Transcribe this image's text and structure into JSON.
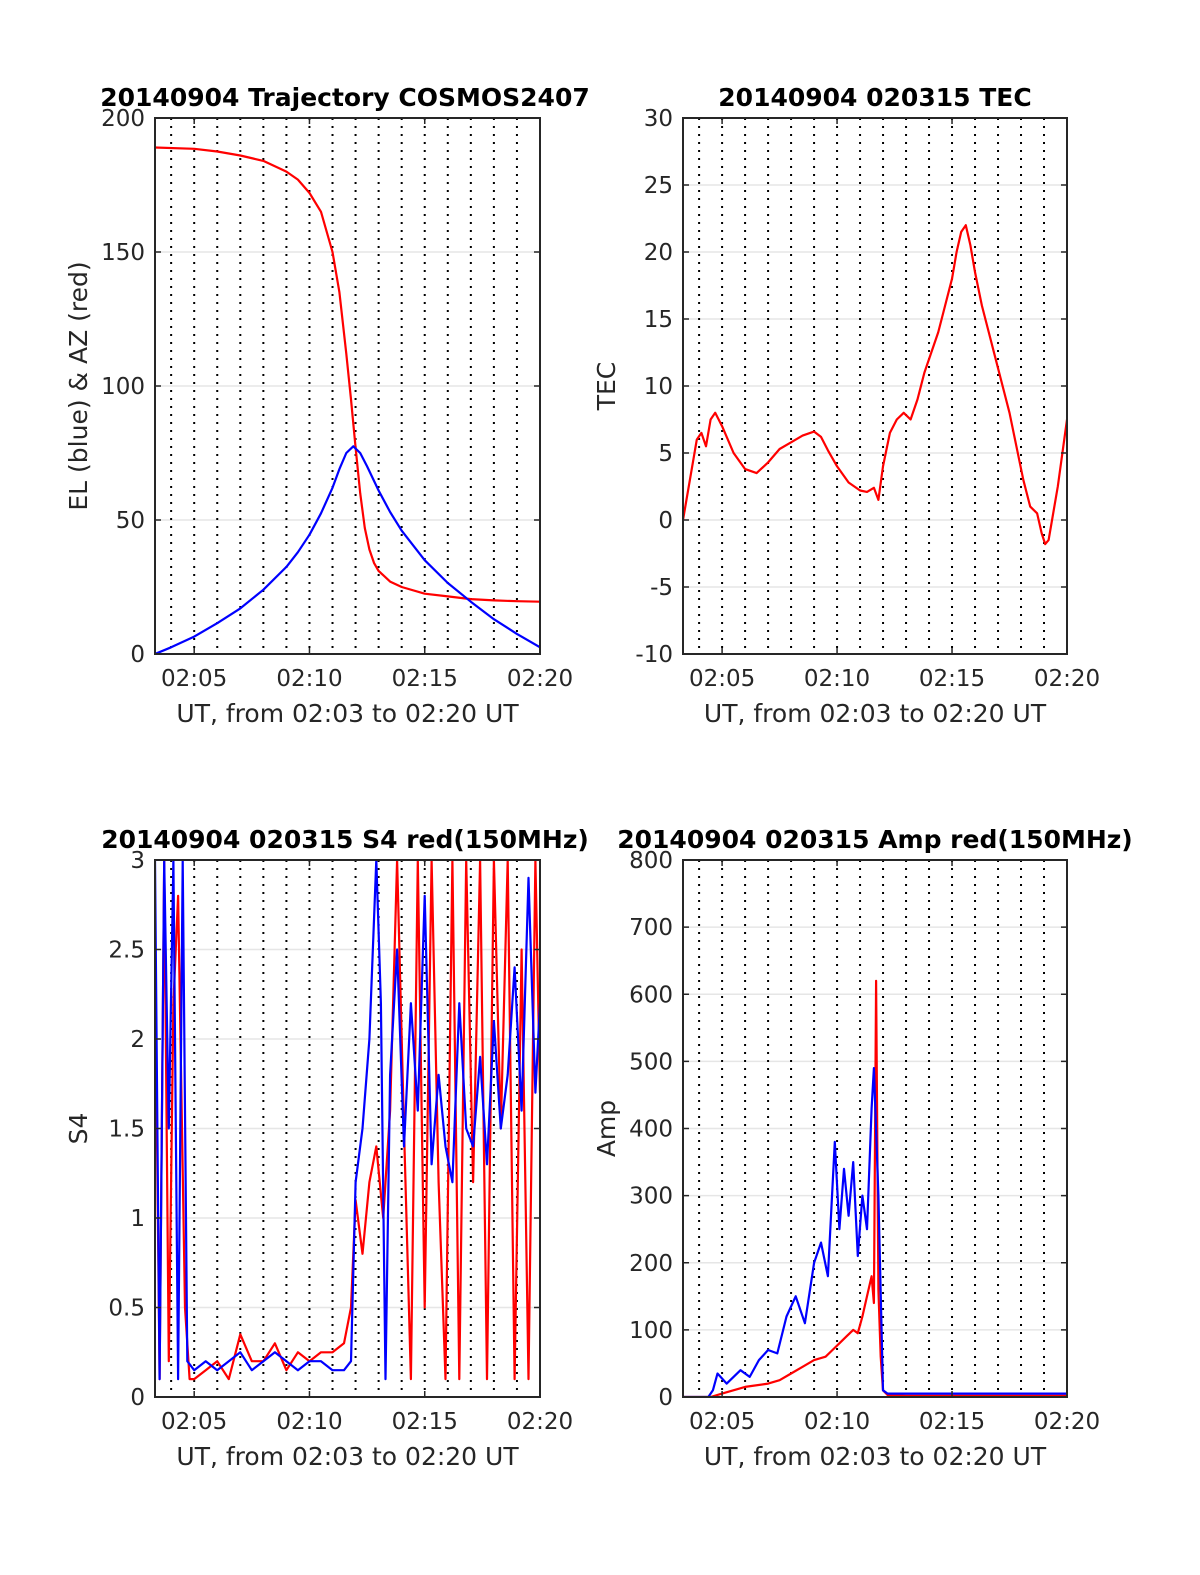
{
  "chart_data": [
    {
      "type": "line",
      "title": "20140904 Trajectory COSMOS2407",
      "xlabel": "UT, from 02:03 to 02:20 UT",
      "ylabel": "EL (blue) & AZ (red)",
      "xlim": [
        3.3,
        20.0
      ],
      "ylim": [
        0,
        200
      ],
      "xticks": [
        5,
        10,
        15,
        20
      ],
      "xtick_labels": [
        "02:05",
        "02:10",
        "02:15",
        "02:20"
      ],
      "yticks": [
        0,
        50,
        100,
        150,
        200
      ],
      "ytick_labels": [
        "0",
        "50",
        "100",
        "150",
        "200"
      ],
      "grid": true,
      "series": [
        {
          "color": "#ff0000",
          "x": [
            3.3,
            5,
            6,
            7,
            8,
            9,
            9.5,
            10,
            10.5,
            11,
            11.3,
            11.6,
            11.8,
            12.0,
            12.2,
            12.4,
            12.6,
            12.8,
            13.0,
            13.5,
            14,
            15,
            16,
            17,
            18,
            19,
            20
          ],
          "y": [
            189,
            188.5,
            187.5,
            186,
            184,
            180,
            177,
            172,
            165,
            150,
            135,
            112,
            95,
            77,
            60,
            47,
            39,
            34,
            31,
            27,
            25,
            22.5,
            21.5,
            20.5,
            20,
            19.7,
            19.5
          ]
        },
        {
          "color": "#0000ff",
          "x": [
            3.3,
            4,
            5,
            6,
            7,
            8,
            9,
            9.5,
            10,
            10.5,
            11,
            11.3,
            11.6,
            11.9,
            12.2,
            12.5,
            13,
            13.5,
            14,
            15,
            16,
            17,
            18,
            19,
            20
          ],
          "y": [
            0,
            2.5,
            6.5,
            11.5,
            17,
            24,
            32.5,
            38,
            44.5,
            52.5,
            62,
            69,
            75,
            77.5,
            75,
            70,
            61,
            53,
            46,
            35,
            26.5,
            19.5,
            13,
            7.5,
            2.5
          ]
        }
      ]
    },
    {
      "type": "line",
      "title": "20140904 020315 TEC",
      "xlabel": "UT, from 02:03 to 02:20 UT",
      "ylabel": "TEC",
      "xlim": [
        3.3,
        20.0
      ],
      "ylim": [
        -10,
        30
      ],
      "xticks": [
        5,
        10,
        15,
        20
      ],
      "xtick_labels": [
        "02:05",
        "02:10",
        "02:15",
        "02:20"
      ],
      "yticks": [
        -10,
        -5,
        0,
        5,
        10,
        15,
        20,
        25,
        30
      ],
      "ytick_labels": [
        "-10",
        "-5",
        "0",
        "5",
        "10",
        "15",
        "20",
        "25",
        "30"
      ],
      "grid": true,
      "series": [
        {
          "color": "#ff0000",
          "x": [
            3.3,
            3.5,
            3.7,
            3.9,
            4.1,
            4.3,
            4.5,
            4.7,
            5.0,
            5.5,
            6.0,
            6.5,
            7.0,
            7.5,
            8.0,
            8.5,
            9.0,
            9.3,
            9.6,
            10.0,
            10.5,
            11.0,
            11.3,
            11.6,
            11.8,
            12.0,
            12.3,
            12.6,
            12.9,
            13.2,
            13.5,
            13.8,
            14.1,
            14.4,
            14.7,
            15.0,
            15.2,
            15.4,
            15.6,
            15.8,
            16.0,
            16.3,
            16.6,
            16.9,
            17.2,
            17.5,
            17.8,
            18.1,
            18.4,
            18.7,
            18.9,
            19.05,
            19.2,
            19.4,
            19.6,
            19.8,
            20.0
          ],
          "y": [
            0,
            2,
            4,
            6,
            6.5,
            5.5,
            7.5,
            8,
            7,
            5,
            3.8,
            3.5,
            4.3,
            5.3,
            5.8,
            6.3,
            6.6,
            6.2,
            5.2,
            4,
            2.8,
            2.2,
            2.1,
            2.4,
            1.5,
            4,
            6.5,
            7.5,
            8,
            7.5,
            9,
            11,
            12.5,
            14,
            16,
            18,
            20,
            21.5,
            22,
            20.5,
            18.5,
            16,
            14,
            12,
            10,
            8,
            5.5,
            3,
            1,
            0.5,
            -1,
            -1.8,
            -1.5,
            0.5,
            2.5,
            5,
            7.5
          ]
        }
      ]
    },
    {
      "type": "line",
      "title": "20140904 020315 S4 red(150MHz)",
      "xlabel": "UT, from 02:03 to 02:20 UT",
      "ylabel": "S4",
      "xlim": [
        3.3,
        20.0
      ],
      "ylim": [
        0,
        3
      ],
      "xticks": [
        5,
        10,
        15,
        20
      ],
      "xtick_labels": [
        "02:05",
        "02:10",
        "02:15",
        "02:20"
      ],
      "yticks": [
        0,
        0.5,
        1,
        1.5,
        2,
        2.5,
        3
      ],
      "ytick_labels": [
        "0",
        "0.5",
        "1",
        "1.5",
        "2",
        "2.5",
        "3"
      ],
      "grid": true,
      "series": [
        {
          "color": "#ff0000",
          "x": [
            3.3,
            3.5,
            3.7,
            3.9,
            4.1,
            4.3,
            4.6,
            4.8,
            5.0,
            5.5,
            6.0,
            6.5,
            7.0,
            7.5,
            8.0,
            8.5,
            9.0,
            9.5,
            10.0,
            10.5,
            11.0,
            11.5,
            11.8,
            12.0,
            12.3,
            12.6,
            12.9,
            13.2,
            13.5,
            13.8,
            14.1,
            14.4,
            14.7,
            15.0,
            15.3,
            15.6,
            15.9,
            16.2,
            16.5,
            16.8,
            17.1,
            17.4,
            17.7,
            18.0,
            18.3,
            18.6,
            18.9,
            19.2,
            19.5,
            19.8,
            20.0
          ],
          "y": [
            2.5,
            0.1,
            3,
            0.2,
            2.2,
            2.8,
            0.5,
            0.1,
            0.1,
            0.15,
            0.2,
            0.1,
            0.35,
            0.2,
            0.2,
            0.3,
            0.15,
            0.25,
            0.2,
            0.25,
            0.25,
            0.3,
            0.5,
            1.1,
            0.8,
            1.2,
            1.4,
            1.0,
            1.6,
            3,
            1.5,
            0.1,
            3,
            0.5,
            3,
            1.2,
            0.1,
            3,
            0.1,
            3,
            1.2,
            3,
            0.1,
            3,
            1.5,
            3,
            0.1,
            2.5,
            0.1,
            3,
            1.7
          ]
        },
        {
          "color": "#0000ff",
          "x": [
            3.3,
            3.5,
            3.7,
            3.9,
            4.1,
            4.3,
            4.5,
            4.7,
            5.0,
            5.5,
            6.0,
            6.5,
            7.0,
            7.5,
            8.0,
            8.5,
            9.0,
            9.5,
            10.0,
            10.5,
            11.0,
            11.5,
            11.8,
            12.0,
            12.3,
            12.6,
            12.9,
            13.1,
            13.3,
            13.5,
            13.8,
            14.1,
            14.4,
            14.7,
            15.0,
            15.3,
            15.6,
            15.9,
            16.2,
            16.5,
            16.8,
            17.1,
            17.4,
            17.7,
            18.0,
            18.3,
            18.6,
            18.9,
            19.2,
            19.5,
            19.8,
            20.0
          ],
          "y": [
            3,
            0.1,
            3,
            1.5,
            3,
            0.1,
            3,
            0.2,
            0.15,
            0.2,
            0.15,
            0.2,
            0.25,
            0.15,
            0.2,
            0.25,
            0.2,
            0.15,
            0.2,
            0.2,
            0.15,
            0.15,
            0.2,
            1.2,
            1.5,
            2.0,
            3,
            2.2,
            0.1,
            1.8,
            2.5,
            1.4,
            2.2,
            1.6,
            2.8,
            1.3,
            1.8,
            1.4,
            1.2,
            2.2,
            1.5,
            1.4,
            1.9,
            1.3,
            2.1,
            1.5,
            1.8,
            2.4,
            1.6,
            2.9,
            1.7,
            2.2
          ]
        }
      ]
    },
    {
      "type": "line",
      "title": "20140904 020315 Amp red(150MHz)",
      "xlabel": "UT, from 02:03 to 02:20 UT",
      "ylabel": "Amp",
      "xlim": [
        3.3,
        20.0
      ],
      "ylim": [
        0,
        800
      ],
      "xticks": [
        5,
        10,
        15,
        20
      ],
      "xtick_labels": [
        "02:05",
        "02:10",
        "02:15",
        "02:20"
      ],
      "yticks": [
        0,
        100,
        200,
        300,
        400,
        500,
        600,
        700,
        800
      ],
      "ytick_labels": [
        "0",
        "100",
        "200",
        "300",
        "400",
        "500",
        "600",
        "700",
        "800"
      ],
      "grid": true,
      "series": [
        {
          "color": "#ff0000",
          "x": [
            3.3,
            4.5,
            5.0,
            6.0,
            7.0,
            7.5,
            8.0,
            8.5,
            9.0,
            9.5,
            9.8,
            10.1,
            10.4,
            10.7,
            10.9,
            11.1,
            11.3,
            11.5,
            11.6,
            11.7,
            11.8,
            11.9,
            12.0,
            12.2,
            13,
            15,
            17,
            20
          ],
          "y": [
            0,
            0,
            5,
            15,
            20,
            25,
            35,
            45,
            55,
            60,
            70,
            80,
            90,
            100,
            95,
            120,
            150,
            180,
            140,
            620,
            160,
            60,
            10,
            3,
            2,
            2,
            2,
            2
          ]
        },
        {
          "color": "#0000ff",
          "x": [
            3.3,
            4.4,
            4.6,
            4.8,
            5.2,
            5.8,
            6.2,
            6.6,
            7.0,
            7.4,
            7.8,
            8.2,
            8.6,
            9.0,
            9.3,
            9.6,
            9.9,
            10.1,
            10.3,
            10.5,
            10.7,
            10.9,
            11.1,
            11.3,
            11.5,
            11.6,
            11.8,
            12.0,
            12.2,
            13,
            15,
            17,
            20
          ],
          "y": [
            0,
            0,
            10,
            35,
            20,
            40,
            30,
            55,
            70,
            65,
            120,
            150,
            110,
            200,
            230,
            180,
            380,
            250,
            340,
            270,
            350,
            210,
            300,
            250,
            430,
            490,
            300,
            10,
            5,
            5,
            5,
            5,
            5
          ]
        }
      ]
    }
  ]
}
